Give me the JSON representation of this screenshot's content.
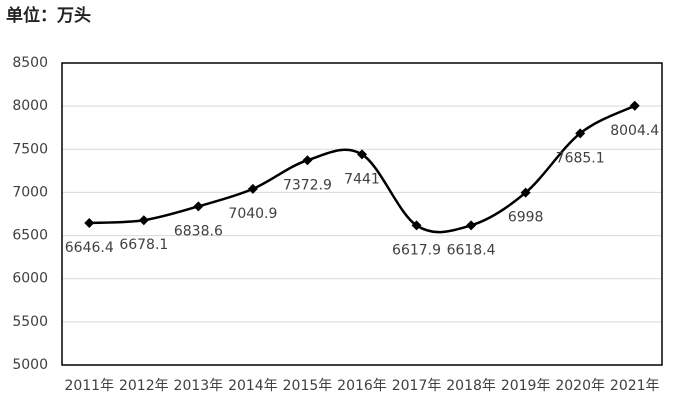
{
  "chart_data": {
    "type": "line",
    "title": "单位：万头",
    "categories": [
      "2011年",
      "2012年",
      "2013年",
      "2014年",
      "2015年",
      "2016年",
      "2017年",
      "2018年",
      "2019年",
      "2020年",
      "2021年"
    ],
    "series": [
      {
        "color": "#000000",
        "values": [
          6646.4,
          6678.1,
          6838.6,
          7040.9,
          7372.9,
          7441,
          6617.9,
          6618.4,
          6998,
          7685.1,
          8004.4
        ]
      }
    ],
    "ylim": [
      5000,
      8500
    ],
    "yticks": [
      5000,
      5500,
      6000,
      6500,
      7000,
      7500,
      8000,
      8500
    ],
    "grid": true,
    "smooth": true
  }
}
